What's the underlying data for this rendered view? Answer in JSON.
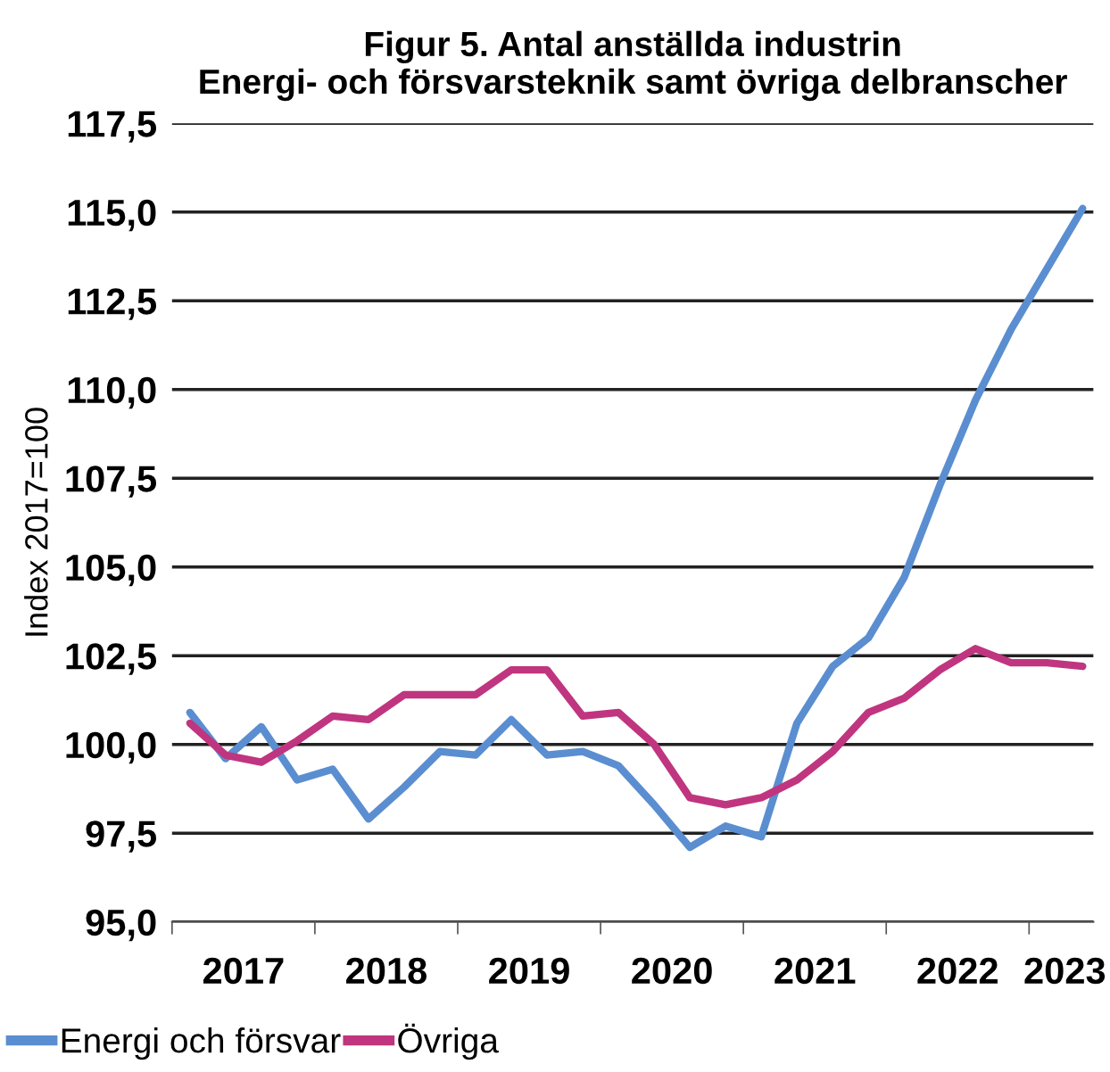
{
  "chart_data": {
    "type": "line",
    "title": "Figur 5. Antal anställda industrin\nEnergi- och försvarsteknik samt övriga delbranscher",
    "ylabel": "Index 2017=100",
    "x": [
      2017.125,
      2017.375,
      2017.625,
      2017.875,
      2018.125,
      2018.375,
      2018.625,
      2018.875,
      2019.125,
      2019.375,
      2019.625,
      2019.875,
      2020.125,
      2020.375,
      2020.625,
      2020.875,
      2021.125,
      2021.375,
      2021.625,
      2021.875,
      2022.125,
      2022.375,
      2022.625,
      2022.875,
      2023.125,
      2023.375
    ],
    "series": [
      {
        "name": "Energi och försvar",
        "color": "#5a8ed0",
        "values": [
          100.9,
          99.6,
          100.5,
          99.0,
          99.3,
          97.9,
          98.8,
          99.8,
          99.7,
          100.7,
          99.7,
          99.8,
          99.4,
          98.3,
          97.1,
          97.7,
          97.4,
          100.6,
          102.2,
          103.0,
          104.7,
          107.3,
          109.7,
          111.7,
          113.4,
          115.1
        ]
      },
      {
        "name": "Övriga",
        "color": "#c0357f",
        "values": [
          100.6,
          99.7,
          99.5,
          100.1,
          100.8,
          100.7,
          101.4,
          101.4,
          101.4,
          102.1,
          102.1,
          100.8,
          100.9,
          100.0,
          98.5,
          98.3,
          98.5,
          99.0,
          99.8,
          100.9,
          101.3,
          102.1,
          102.7,
          102.3,
          102.3,
          102.2
        ]
      }
    ],
    "xlim": [
      2017.0,
      2023.45
    ],
    "xticks": [
      {
        "value": 2017,
        "label": null
      },
      {
        "value": 2017.5,
        "label": "2017"
      },
      {
        "value": 2018,
        "label": null
      },
      {
        "value": 2018.5,
        "label": "2018"
      },
      {
        "value": 2019,
        "label": null
      },
      {
        "value": 2019.5,
        "label": "2019"
      },
      {
        "value": 2020,
        "label": null
      },
      {
        "value": 2020.5,
        "label": "2020"
      },
      {
        "value": 2021,
        "label": null
      },
      {
        "value": 2021.5,
        "label": "2021"
      },
      {
        "value": 2022,
        "label": null
      },
      {
        "value": 2022.5,
        "label": "2022"
      },
      {
        "value": 2023,
        "label": null
      },
      {
        "value": 2023.25,
        "label": "2023"
      }
    ],
    "ylim": [
      95.0,
      117.5
    ],
    "yticks": [
      {
        "value": 95.0,
        "label": "95,0"
      },
      {
        "value": 97.5,
        "label": "97,5"
      },
      {
        "value": 100.0,
        "label": "100,0"
      },
      {
        "value": 102.5,
        "label": "102,5"
      },
      {
        "value": 105.0,
        "label": "105,0"
      },
      {
        "value": 107.5,
        "label": "107,5"
      },
      {
        "value": 110.0,
        "label": "110,0"
      },
      {
        "value": 112.5,
        "label": "112,5"
      },
      {
        "value": 115.0,
        "label": "115,0"
      },
      {
        "value": 117.5,
        "label": "117,5"
      }
    ],
    "grid": "y",
    "legend": "bottom left",
    "marker": "none",
    "line_style": "solid"
  }
}
